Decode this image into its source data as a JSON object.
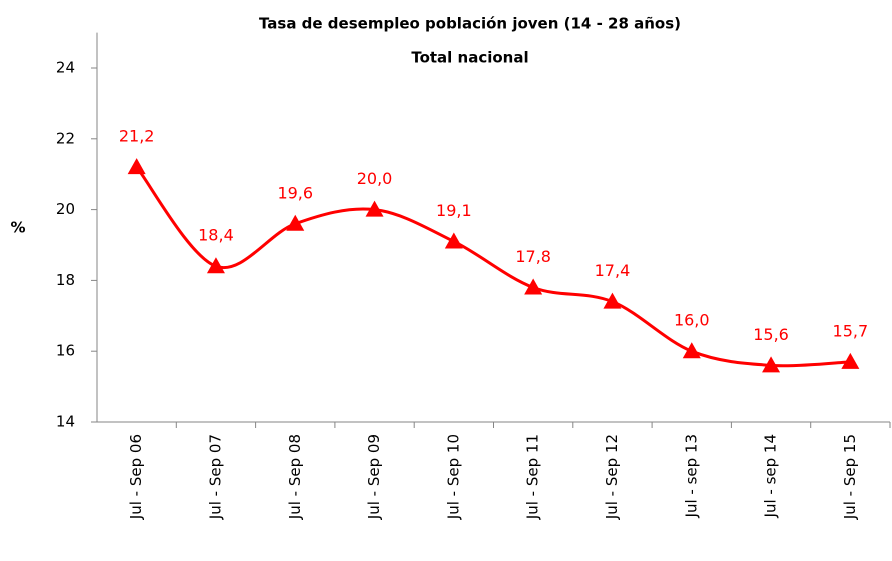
{
  "chart_data": {
    "type": "line",
    "title": "Tasa de desempleo población  joven (14 - 28 años)",
    "subtitle": "Total nacional",
    "y_label": "%",
    "categories": [
      "Jul - Sep 06",
      "Jul - Sep 07",
      "Jul - Sep 08",
      "Jul - Sep 09",
      "Jul - Sep 10",
      "Jul - Sep 11",
      "Jul - Sep 12",
      "Jul - sep 13",
      "Jul - sep 14",
      "Jul - Sep 15"
    ],
    "series": [
      {
        "name": "Tasa de desempleo",
        "color": "#ff0000",
        "values": [
          21.2,
          18.4,
          19.6,
          20.0,
          19.1,
          17.8,
          17.4,
          16.0,
          15.6,
          15.7
        ],
        "value_labels": [
          "21,2",
          "18,4",
          "19,6",
          "20,0",
          "19,1",
          "17,8",
          "17,4",
          "16,0",
          "15,6",
          "15,7"
        ]
      }
    ],
    "ylim": [
      14,
      25
    ],
    "yticks": [
      14,
      16,
      18,
      20,
      22,
      24
    ],
    "grid": false,
    "legend": false,
    "smooth": true
  }
}
